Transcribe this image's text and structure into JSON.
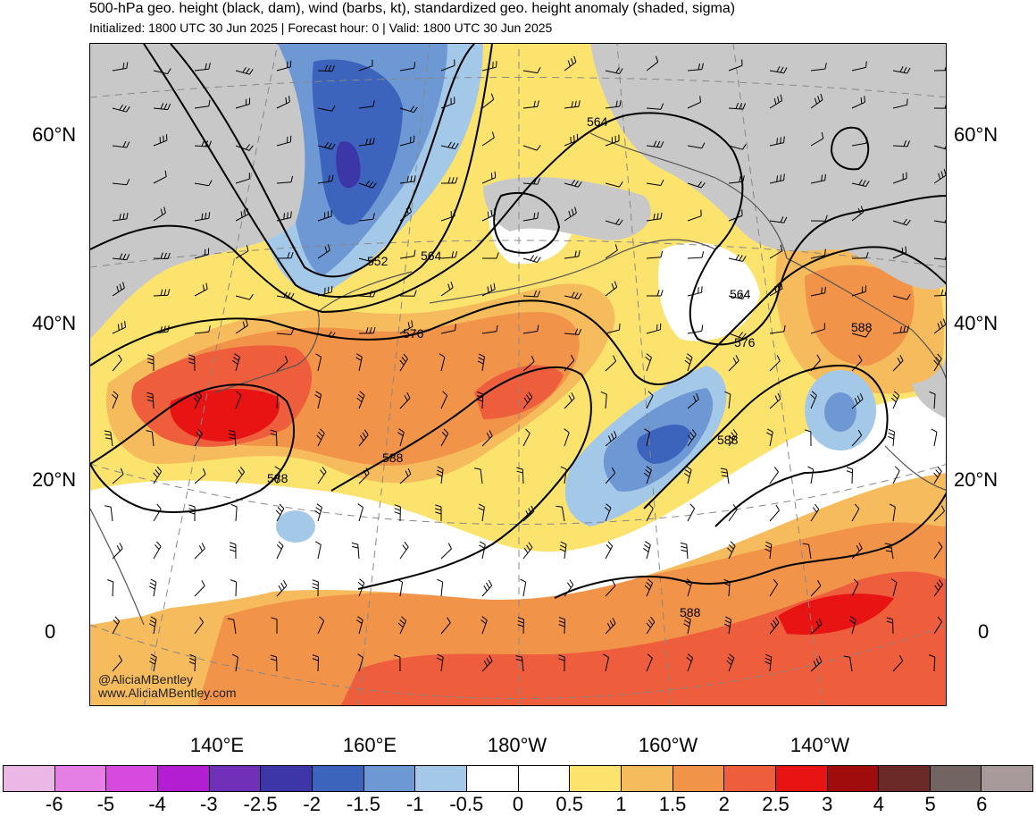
{
  "header": {
    "title": "500-hPa geo. height (black, dam), wind (barbs, kt), standardized geo. height anomaly (shaded, sigma)",
    "subtitle": "Initialized: 1800 UTC 30 Jun 2025 | Forecast hour: 0 | Valid: 1800 UTC 30 Jun 2025"
  },
  "map": {
    "lat_labels": [
      "60°N",
      "40°N",
      "20°N",
      "0"
    ],
    "lon_labels": [
      "140°E",
      "160°E",
      "180°W",
      "160°W",
      "140°W"
    ],
    "contour_labels": [
      "564",
      "552",
      "564",
      "576",
      "564",
      "576",
      "588",
      "588",
      "588",
      "588",
      "588"
    ],
    "credits": [
      "@AliciaMBentley",
      "www.AliciaMBentley.com"
    ],
    "colors": {
      "land": "#c8c8c8",
      "coast": "#555555",
      "grid": "#888888",
      "contour": "#000000"
    }
  },
  "colorbar": {
    "labels": [
      "-6",
      "-5",
      "-4",
      "-3",
      "-2.5",
      "-2",
      "-1.5",
      "-1",
      "-0.5",
      "0",
      "0.5",
      "1",
      "1.5",
      "2",
      "2.5",
      "3",
      "4",
      "5",
      "6"
    ],
    "colors": [
      "#ebb8e6",
      "#e57fe6",
      "#d64ae0",
      "#b41ed2",
      "#7030b8",
      "#3c36a8",
      "#3c64bc",
      "#6d98d4",
      "#a4c8e8",
      "#ffffff",
      "#ffffff",
      "#fbe36e",
      "#f5bb5c",
      "#f2934a",
      "#ee5e3c",
      "#e81414",
      "#a00c0c",
      "#6b2a28",
      "#736464",
      "#a89a9a"
    ]
  }
}
